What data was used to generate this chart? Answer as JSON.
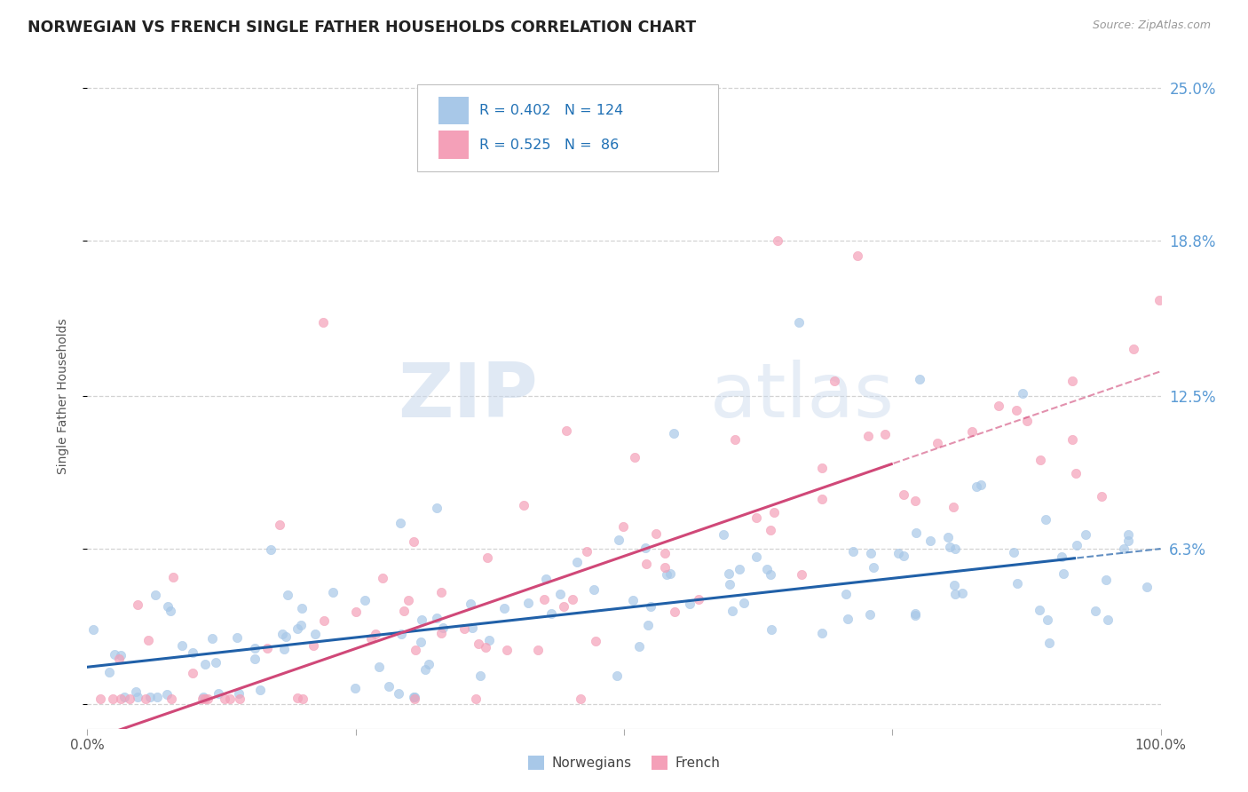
{
  "title": "NORWEGIAN VS FRENCH SINGLE FATHER HOUSEHOLDS CORRELATION CHART",
  "source": "Source: ZipAtlas.com",
  "ylabel": "Single Father Households",
  "legend_blue_label": "Norwegians",
  "legend_pink_label": "French",
  "R_blue": 0.402,
  "N_blue": 124,
  "R_pink": 0.525,
  "N_pink": 86,
  "blue_color": "#a8c8e8",
  "pink_color": "#f4a0b8",
  "blue_line_color": "#2060a8",
  "pink_line_color": "#d04878",
  "title_color": "#222222",
  "axis_label_color": "#5b9bd5",
  "legend_text_color": "#2171b5",
  "watermark_zip": "ZIP",
  "watermark_atlas": "atlas",
  "background_color": "#ffffff",
  "grid_color": "#c8c8c8",
  "xmin": 0.0,
  "xmax": 100.0,
  "ymin": -1.0,
  "ymax": 26.0,
  "yticks": [
    0.0,
    6.3,
    12.5,
    18.8,
    25.0
  ],
  "blue_reg_x0": 0,
  "blue_reg_x1": 100,
  "blue_reg_y0": 1.5,
  "blue_reg_y1": 6.3,
  "pink_reg_x0": 0,
  "pink_reg_x1": 100,
  "pink_reg_y0": -1.5,
  "pink_reg_y1": 13.5,
  "pink_solid_xmax": 75,
  "blue_solid_xmax": 100
}
